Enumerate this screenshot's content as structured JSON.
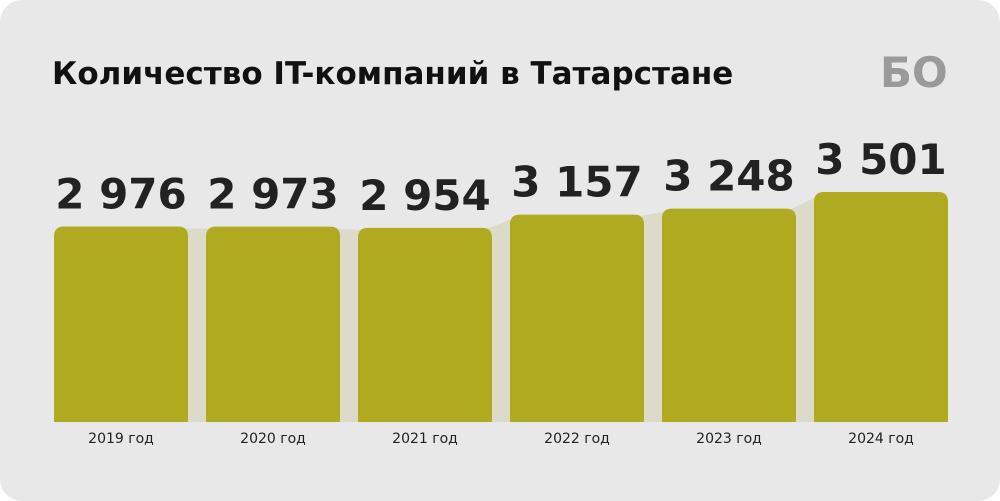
{
  "logo": "БО",
  "chart_data": {
    "type": "bar",
    "title": "Количество IT-компаний в Татарстане",
    "categories": [
      "2019 год",
      "2020 год",
      "2021 год",
      "2022 год",
      "2023 год",
      "2024 год"
    ],
    "values": [
      2976,
      2973,
      2954,
      3157,
      3248,
      3501
    ],
    "value_labels": [
      "2 976",
      "2 973",
      "2 954",
      "3 157",
      "3 248",
      "3 501"
    ],
    "color": "#afaa1f"
  }
}
